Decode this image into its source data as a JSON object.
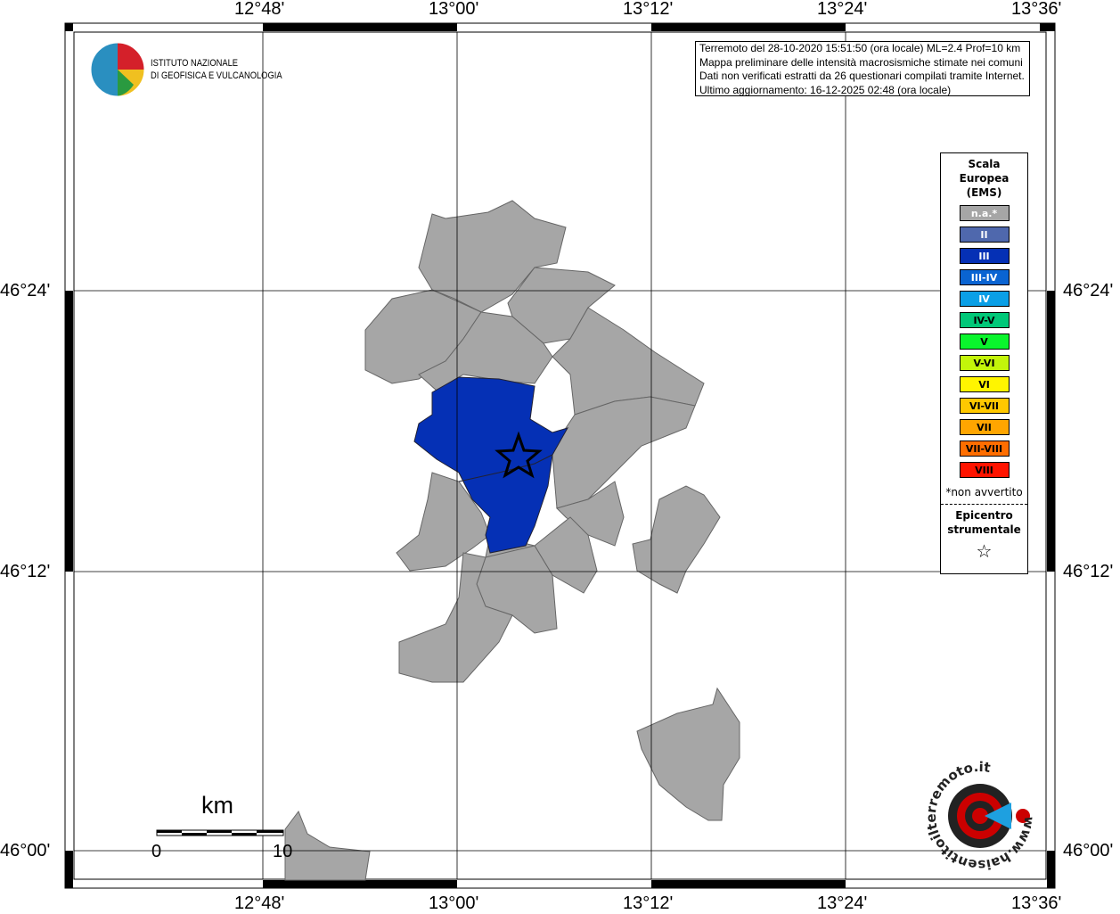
{
  "map": {
    "lon_labels": [
      "12°48'",
      "13°00'",
      "13°12'",
      "13°24'",
      "13°36'"
    ],
    "lat_labels": [
      "46°24'",
      "46°12'",
      "46°00'"
    ],
    "epicenter_icon": "star-icon"
  },
  "logo": {
    "line1": "ISTITUTO NAZIONALE",
    "line2": "DI GEOFISICA E VULCANOLOGIA"
  },
  "info": {
    "line1": "Terremoto del 28-10-2020 15:51:50 (ora locale) ML=2.4 Prof=10 km",
    "line2": "Mappa preliminare delle intensità macrosismiche stimate nei comuni",
    "line3": "Dati non verificati estratti da 26 questionari compilati tramite Internet.",
    "line4": "Ultimo aggiornamento: 16-12-2025 02:48 (ora locale)"
  },
  "legend": {
    "title": [
      "Scala",
      "Europea",
      "(EMS)"
    ],
    "items": [
      {
        "label": "n.a.*",
        "color": "#a6a6a6",
        "text": "#fff"
      },
      {
        "label": "II",
        "color": "#4f68ad",
        "text": "#fff"
      },
      {
        "label": "III",
        "color": "#0530b5",
        "text": "#fff"
      },
      {
        "label": "III-IV",
        "color": "#0a64d2",
        "text": "#fff"
      },
      {
        "label": "IV",
        "color": "#0a9fe6",
        "text": "#fff"
      },
      {
        "label": "IV-V",
        "color": "#00c878",
        "text": "#000"
      },
      {
        "label": "V",
        "color": "#0af52d",
        "text": "#000"
      },
      {
        "label": "V-VI",
        "color": "#c3f50a",
        "text": "#000"
      },
      {
        "label": "VI",
        "color": "#fff500",
        "text": "#000"
      },
      {
        "label": "VI-VII",
        "color": "#ffc800",
        "text": "#000"
      },
      {
        "label": "VII",
        "color": "#ffa500",
        "text": "#000"
      },
      {
        "label": "VII-VIII",
        "color": "#ff6e00",
        "text": "#000"
      },
      {
        "label": "VIII",
        "color": "#ff1400",
        "text": "#000"
      }
    ],
    "note": "*non avvertito",
    "epicenter": [
      "Epicentro",
      "strumentale"
    ]
  },
  "scalebar": {
    "unit": "km",
    "start": "0",
    "end": "10"
  },
  "watermark": {
    "text": "www.haisentitoilterremoto.it"
  }
}
